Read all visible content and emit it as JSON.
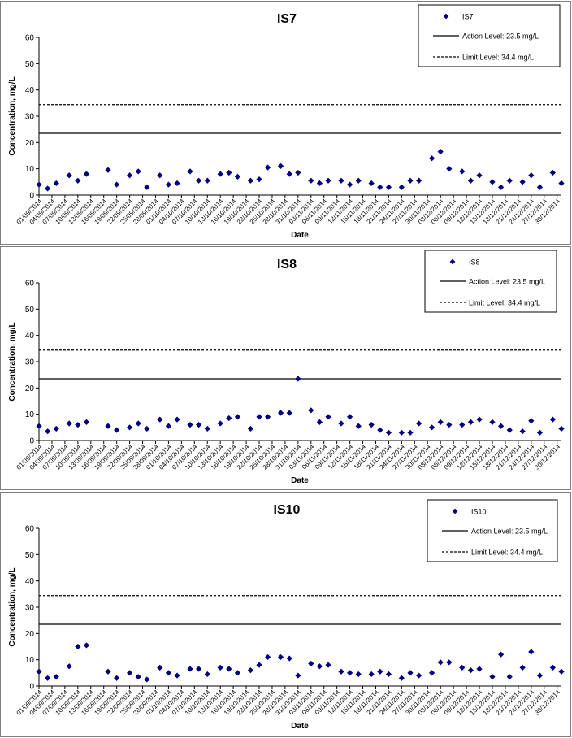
{
  "colors": {
    "marker": "#000080",
    "line": "#000000",
    "border": "#7f7f7f",
    "background": "#ffffff"
  },
  "chart_data": [
    {
      "type": "scatter",
      "title": "IS7",
      "xlabel": "Date",
      "ylabel": "Concentration, mg/L",
      "ylim": [
        0,
        60
      ],
      "yticks": [
        0,
        10,
        20,
        30,
        40,
        50,
        60
      ],
      "xlim": [
        "2014-09-01",
        "2014-12-31"
      ],
      "xtick_labels": [
        "01/09/2014",
        "04/09/2014",
        "07/09/2014",
        "10/09/2014",
        "13/09/2014",
        "16/09/2014",
        "19/09/2014",
        "22/09/2014",
        "25/09/2014",
        "28/09/2014",
        "01/10/2014",
        "04/10/2014",
        "07/10/2014",
        "10/10/2014",
        "13/10/2014",
        "16/10/2014",
        "19/10/2014",
        "22/10/2014",
        "25/10/2014",
        "28/10/2014",
        "31/10/2014",
        "03/11/2014",
        "06/11/2014",
        "09/11/2014",
        "12/11/2014",
        "15/11/2014",
        "18/11/2014",
        "21/11/2014",
        "24/11/2014",
        "27/11/2014",
        "30/11/2014",
        "03/12/2014",
        "06/12/2014",
        "09/12/2014",
        "12/12/2014",
        "15/12/2014",
        "18/12/2014",
        "21/12/2014",
        "24/12/2014",
        "27/12/2014",
        "30/12/2014"
      ],
      "grid": false,
      "legend_position": "top-right",
      "series": [
        {
          "name": "IS7",
          "x": [
            "2014-09-01",
            "2014-09-03",
            "2014-09-05",
            "2014-09-08",
            "2014-09-10",
            "2014-09-12",
            "2014-09-17",
            "2014-09-19",
            "2014-09-22",
            "2014-09-24",
            "2014-09-26",
            "2014-09-29",
            "2014-10-01",
            "2014-10-03",
            "2014-10-06",
            "2014-10-08",
            "2014-10-10",
            "2014-10-13",
            "2014-10-15",
            "2014-10-17",
            "2014-10-20",
            "2014-10-22",
            "2014-10-24",
            "2014-10-27",
            "2014-10-29",
            "2014-10-31",
            "2014-11-03",
            "2014-11-05",
            "2014-11-07",
            "2014-11-10",
            "2014-11-12",
            "2014-11-14",
            "2014-11-17",
            "2014-11-19",
            "2014-11-21",
            "2014-11-24",
            "2014-11-26",
            "2014-11-28",
            "2014-12-01",
            "2014-12-03",
            "2014-12-05",
            "2014-12-08",
            "2014-12-10",
            "2014-12-12",
            "2014-12-15",
            "2014-12-17",
            "2014-12-19",
            "2014-12-22",
            "2014-12-24",
            "2014-12-26",
            "2014-12-29",
            "2014-12-31"
          ],
          "y": [
            4,
            2.5,
            4.5,
            7.5,
            5.5,
            8,
            9.5,
            4,
            7.5,
            9,
            3,
            7.5,
            4,
            4.5,
            9,
            5.5,
            5.5,
            8,
            8.5,
            7,
            5.5,
            6,
            10.5,
            11,
            8,
            8.5,
            5.5,
            4.5,
            5.5,
            5.5,
            4,
            5.5,
            4.5,
            3,
            3,
            3,
            5.5,
            5.5,
            14,
            16.5,
            10,
            9,
            5.5,
            7.5,
            5,
            3,
            5.5,
            5,
            7.5,
            3,
            8.5,
            4.5
          ]
        }
      ],
      "reference_lines": [
        {
          "name": "Action Level: 23.5 mg/L",
          "value": 23.5,
          "style": "solid"
        },
        {
          "name": "Limit Level: 34.4 mg/L",
          "value": 34.4,
          "style": "dashed"
        }
      ]
    },
    {
      "type": "scatter",
      "title": "IS8",
      "xlabel": "Date",
      "ylabel": "Concentration, mg/L",
      "ylim": [
        0,
        60
      ],
      "yticks": [
        0,
        10,
        20,
        30,
        40,
        50,
        60
      ],
      "xlim": [
        "2014-09-01",
        "2014-12-31"
      ],
      "xtick_labels": [
        "01/09/2014",
        "04/09/2014",
        "07/09/2014",
        "10/09/2014",
        "13/09/2014",
        "16/09/2014",
        "19/09/2014",
        "22/09/2014",
        "25/09/2014",
        "28/09/2014",
        "01/10/2014",
        "04/10/2014",
        "07/10/2014",
        "10/10/2014",
        "13/10/2014",
        "16/10/2014",
        "19/10/2014",
        "22/10/2014",
        "25/10/2014",
        "28/10/2014",
        "31/10/2014",
        "03/11/2014",
        "06/11/2014",
        "09/11/2014",
        "12/11/2014",
        "15/11/2014",
        "18/11/2014",
        "21/11/2014",
        "24/11/2014",
        "27/11/2014",
        "30/11/2014",
        "03/12/2014",
        "06/12/2014",
        "09/12/2014",
        "12/12/2014",
        "15/12/2014",
        "18/12/2014",
        "21/12/2014",
        "24/12/2014",
        "27/12/2014",
        "30/12/2014"
      ],
      "grid": false,
      "legend_position": "top-right",
      "series": [
        {
          "name": "IS8",
          "x": [
            "2014-09-01",
            "2014-09-03",
            "2014-09-05",
            "2014-09-08",
            "2014-09-10",
            "2014-09-12",
            "2014-09-17",
            "2014-09-19",
            "2014-09-22",
            "2014-09-24",
            "2014-09-26",
            "2014-09-29",
            "2014-10-01",
            "2014-10-03",
            "2014-10-06",
            "2014-10-08",
            "2014-10-10",
            "2014-10-13",
            "2014-10-15",
            "2014-10-17",
            "2014-10-20",
            "2014-10-22",
            "2014-10-24",
            "2014-10-27",
            "2014-10-29",
            "2014-10-31",
            "2014-11-03",
            "2014-11-05",
            "2014-11-07",
            "2014-11-10",
            "2014-11-12",
            "2014-11-14",
            "2014-11-17",
            "2014-11-19",
            "2014-11-21",
            "2014-11-24",
            "2014-11-26",
            "2014-11-28",
            "2014-12-01",
            "2014-12-03",
            "2014-12-05",
            "2014-12-08",
            "2014-12-10",
            "2014-12-12",
            "2014-12-15",
            "2014-12-17",
            "2014-12-19",
            "2014-12-22",
            "2014-12-24",
            "2014-12-26",
            "2014-12-29",
            "2014-12-31"
          ],
          "y": [
            5.5,
            3.5,
            4.5,
            6.5,
            6,
            7,
            5.5,
            4,
            5,
            6.5,
            4.5,
            8,
            5.5,
            8,
            6,
            6,
            4.5,
            6.5,
            8.5,
            9,
            4.5,
            9,
            9,
            10.5,
            10.5,
            23.5,
            11.5,
            7,
            9,
            6.5,
            9,
            5.5,
            6,
            4,
            3,
            3,
            3,
            6.5,
            5,
            7,
            6,
            6,
            7,
            8,
            7,
            5.5,
            4,
            3.5,
            7.5,
            3,
            8,
            4.5
          ]
        }
      ],
      "reference_lines": [
        {
          "name": "Action Level: 23.5 mg/L",
          "value": 23.5,
          "style": "solid"
        },
        {
          "name": "Limit Level: 34.4 mg/L",
          "value": 34.4,
          "style": "dashed"
        }
      ]
    },
    {
      "type": "scatter",
      "title": "IS10",
      "xlabel": "Date",
      "ylabel": "Concentration, mg/L",
      "ylim": [
        0,
        60
      ],
      "yticks": [
        0,
        10,
        20,
        30,
        40,
        50,
        60
      ],
      "xlim": [
        "2014-09-01",
        "2014-12-31"
      ],
      "xtick_labels": [
        "01/09/2014",
        "04/09/2014",
        "07/09/2014",
        "10/09/2014",
        "13/09/2014",
        "16/09/2014",
        "19/09/2014",
        "22/09/2014",
        "25/09/2014",
        "28/09/2014",
        "01/10/2014",
        "04/10/2014",
        "07/10/2014",
        "10/10/2014",
        "13/10/2014",
        "16/10/2014",
        "19/10/2014",
        "22/10/2014",
        "25/10/2014",
        "28/10/2014",
        "31/10/2014",
        "03/11/2014",
        "06/11/2014",
        "09/11/2014",
        "12/11/2014",
        "15/11/2014",
        "18/11/2014",
        "21/11/2014",
        "24/11/2014",
        "27/11/2014",
        "30/11/2014",
        "03/12/2014",
        "06/12/2014",
        "09/12/2014",
        "12/12/2014",
        "15/12/2014",
        "18/12/2014",
        "21/12/2014",
        "24/12/2014",
        "27/12/2014",
        "30/12/2014"
      ],
      "grid": false,
      "legend_position": "top-right",
      "series": [
        {
          "name": "IS10",
          "x": [
            "2014-09-01",
            "2014-09-03",
            "2014-09-05",
            "2014-09-08",
            "2014-09-10",
            "2014-09-12",
            "2014-09-17",
            "2014-09-19",
            "2014-09-22",
            "2014-09-24",
            "2014-09-26",
            "2014-09-29",
            "2014-10-01",
            "2014-10-03",
            "2014-10-06",
            "2014-10-08",
            "2014-10-10",
            "2014-10-13",
            "2014-10-15",
            "2014-10-17",
            "2014-10-20",
            "2014-10-22",
            "2014-10-24",
            "2014-10-27",
            "2014-10-29",
            "2014-10-31",
            "2014-11-03",
            "2014-11-05",
            "2014-11-07",
            "2014-11-10",
            "2014-11-12",
            "2014-11-14",
            "2014-11-17",
            "2014-11-19",
            "2014-11-21",
            "2014-11-24",
            "2014-11-26",
            "2014-11-28",
            "2014-12-01",
            "2014-12-03",
            "2014-12-05",
            "2014-12-08",
            "2014-12-10",
            "2014-12-12",
            "2014-12-15",
            "2014-12-17",
            "2014-12-19",
            "2014-12-22",
            "2014-12-24",
            "2014-12-26",
            "2014-12-29",
            "2014-12-31"
          ],
          "y": [
            5.5,
            3,
            3.5,
            7.5,
            15,
            15.5,
            5.5,
            3,
            5,
            3.5,
            2.5,
            7,
            5,
            4,
            6.5,
            6.5,
            4.5,
            7,
            6.5,
            5,
            6,
            8,
            11,
            11,
            10.5,
            4,
            8.5,
            7.5,
            8,
            5.5,
            5,
            4.5,
            4.5,
            5.5,
            4.5,
            3,
            5,
            4,
            5,
            9,
            9,
            7,
            6,
            6.5,
            3.5,
            12,
            3.5,
            7,
            13,
            4,
            7,
            5.5
          ]
        }
      ],
      "reference_lines": [
        {
          "name": "Action Level: 23.5 mg/L",
          "value": 23.5,
          "style": "solid"
        },
        {
          "name": "Limit Level: 34.4 mg/L",
          "value": 34.4,
          "style": "dashed"
        }
      ]
    }
  ]
}
